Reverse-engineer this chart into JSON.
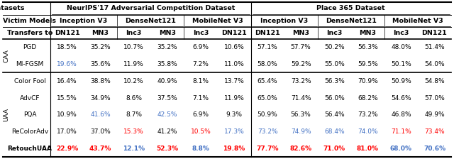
{
  "row_labels": [
    "PGD",
    "MI-FGSM",
    "Color Fool",
    "AdvCF",
    "PQA",
    "ReColorAdv",
    "RetouchUAA"
  ],
  "row_group": [
    0,
    0,
    1,
    1,
    1,
    1,
    1
  ],
  "col_names": [
    "DN121",
    "MN3",
    "Inc3",
    "MN3",
    "Inc3",
    "DN121",
    "DN121",
    "MN3",
    "Inc3",
    "MN3",
    "Inc3",
    "DN121"
  ],
  "data": [
    [
      "18.5%",
      "35.2%",
      "10.7%",
      "35.2%",
      "6.9%",
      "10.6%",
      "57.1%",
      "57.7%",
      "50.2%",
      "56.3%",
      "48.0%",
      "51.4%"
    ],
    [
      "19.6%",
      "35.6%",
      "11.9%",
      "35.8%",
      "7.2%",
      "11.0%",
      "58.0%",
      "59.2%",
      "55.0%",
      "59.5%",
      "50.1%",
      "54.0%"
    ],
    [
      "16.4%",
      "38.8%",
      "10.2%",
      "40.9%",
      "8.1%",
      "13.7%",
      "65.4%",
      "73.2%",
      "56.3%",
      "70.9%",
      "50.9%",
      "54.8%"
    ],
    [
      "15.5%",
      "34.9%",
      "8.6%",
      "37.5%",
      "7.1%",
      "11.9%",
      "65.0%",
      "71.4%",
      "56.0%",
      "68.2%",
      "54.6%",
      "57.0%"
    ],
    [
      "10.9%",
      "41.6%",
      "8.7%",
      "42.5%",
      "6.9%",
      "9.3%",
      "50.9%",
      "56.3%",
      "56.4%",
      "73.2%",
      "46.8%",
      "49.9%"
    ],
    [
      "17.0%",
      "37.0%",
      "15.3%",
      "41.2%",
      "10.5%",
      "17.3%",
      "73.2%",
      "74.9%",
      "68.4%",
      "74.0%",
      "71.1%",
      "73.4%"
    ],
    [
      "22.9%",
      "43.7%",
      "12.1%",
      "52.3%",
      "8.8%",
      "19.8%",
      "77.7%",
      "82.6%",
      "71.0%",
      "81.0%",
      "68.0%",
      "70.6%"
    ]
  ],
  "cell_colors": [
    [
      "k",
      "k",
      "k",
      "k",
      "k",
      "k",
      "k",
      "k",
      "k",
      "k",
      "k",
      "k"
    ],
    [
      "#4472C4",
      "k",
      "k",
      "k",
      "k",
      "k",
      "k",
      "k",
      "k",
      "k",
      "k",
      "k"
    ],
    [
      "k",
      "k",
      "k",
      "k",
      "k",
      "k",
      "k",
      "k",
      "k",
      "k",
      "k",
      "k"
    ],
    [
      "k",
      "k",
      "k",
      "k",
      "k",
      "k",
      "k",
      "k",
      "k",
      "k",
      "k",
      "k"
    ],
    [
      "k",
      "#4472C4",
      "k",
      "#4472C4",
      "k",
      "k",
      "k",
      "k",
      "k",
      "k",
      "k",
      "k"
    ],
    [
      "k",
      "k",
      "#FF0000",
      "k",
      "#FF0000",
      "#4472C4",
      "#4472C4",
      "#4472C4",
      "#4472C4",
      "#4472C4",
      "#FF0000",
      "#FF0000"
    ],
    [
      "#FF0000",
      "#FF0000",
      "#4472C4",
      "#FF0000",
      "#4472C4",
      "#FF0000",
      "#FF0000",
      "#FF0000",
      "#FF0000",
      "#FF0000",
      "#4472C4",
      "#4472C4"
    ]
  ],
  "bg_color": "#ffffff",
  "fontsize": 6.5,
  "header_fontsize": 6.8
}
